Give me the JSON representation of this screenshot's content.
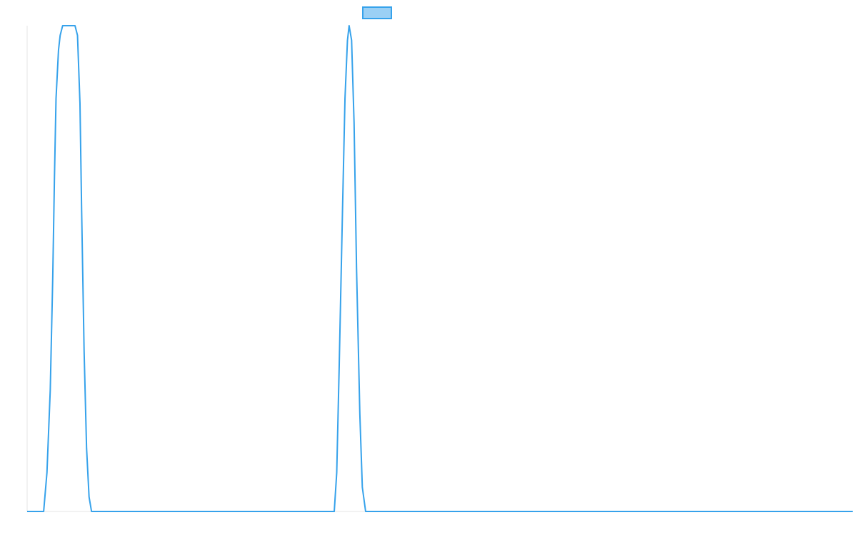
{
  "chart_data": {
    "type": "line",
    "title": "",
    "xlabel": "",
    "ylabel": "",
    "legend": {
      "placement": "top-center",
      "swatch_fill": "#9BD0F5",
      "swatch_stroke": "#36A2EB"
    },
    "grid": false,
    "xlim": [
      0,
      100
    ],
    "ylim": [
      0,
      1
    ],
    "series": [
      {
        "color": "#36A2EB",
        "points": [
          [
            0,
            0
          ],
          [
            2,
            0
          ],
          [
            2.4,
            0.08
          ],
          [
            2.8,
            0.25
          ],
          [
            3.1,
            0.48
          ],
          [
            3.3,
            0.68
          ],
          [
            3.5,
            0.85
          ],
          [
            3.8,
            0.95
          ],
          [
            4.0,
            0.98
          ],
          [
            4.3,
            1.0
          ],
          [
            5.8,
            1.0
          ],
          [
            6.1,
            0.98
          ],
          [
            6.4,
            0.84
          ],
          [
            6.6,
            0.62
          ],
          [
            6.9,
            0.33
          ],
          [
            7.2,
            0.13
          ],
          [
            7.5,
            0.03
          ],
          [
            7.8,
            0
          ],
          [
            37.2,
            0
          ],
          [
            37.5,
            0.08
          ],
          [
            37.8,
            0.3
          ],
          [
            38.2,
            0.62
          ],
          [
            38.5,
            0.85
          ],
          [
            38.8,
            0.97
          ],
          [
            39.0,
            1.0
          ],
          [
            39.3,
            0.97
          ],
          [
            39.6,
            0.8
          ],
          [
            39.9,
            0.5
          ],
          [
            40.3,
            0.2
          ],
          [
            40.6,
            0.05
          ],
          [
            41.0,
            0
          ],
          [
            100,
            0
          ]
        ]
      }
    ]
  }
}
